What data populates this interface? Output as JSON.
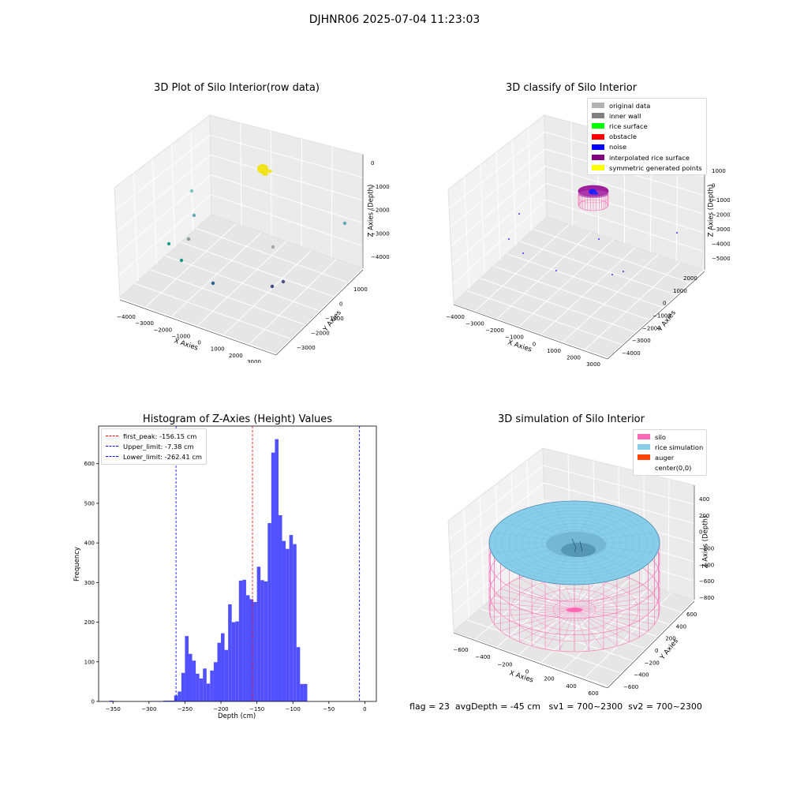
{
  "figure_title": "DJHNR06 2025-07-04 11:23:03",
  "status_text": "flag = 23  avgDepth = -45 cm   sv1 = 700~2300  sv2 = 700~2300",
  "colors": {
    "raw_points": [
      "#7fc5bf",
      "#6aa7b8",
      "#8a9a9f",
      "#1f9f8a",
      "#1a9a80",
      "#2d5f8a",
      "#3a4c8a",
      "#4b4f8e",
      "#a0a8a8",
      "#62a8b5"
    ],
    "yellow": "#f2e21a",
    "histogram": "#4c4cff",
    "peak_line": "#ff0000",
    "limit_line": "#0000ff",
    "silo": "#ff69b4",
    "rice": "#87ceeb",
    "auger": "#ff4500"
  },
  "chart_data": [
    {
      "type": "scatter",
      "dims": 3,
      "title": "3D Plot of Silo Interior(row data)",
      "xlabel": "X Axies",
      "ylabel": "Y Axies",
      "zlabel": "Z Axies (Depth)",
      "x_ticks": [
        "−4000",
        "−3000",
        "−2000",
        "−1000",
        "0",
        "1000",
        "2000",
        "3000"
      ],
      "y_ticks": [
        "1000",
        "0",
        "−1000",
        "−2000",
        "−3000"
      ],
      "z_ticks": [
        "0",
        "−1000",
        "−2000",
        "−3000",
        "−4000"
      ],
      "points_summary": "dense yellow cluster near top center (~x 0, z ~0) plus ~10 scattered points at depth"
    },
    {
      "type": "scatter",
      "dims": 3,
      "title": "3D classify of Silo Interior",
      "xlabel": "X Axies",
      "ylabel": "Y Axies",
      "zlabel": "Z Axies (Depth)",
      "x_ticks": [
        "−4000",
        "−3000",
        "−2000",
        "−1000",
        "0",
        "1000",
        "2000",
        "3000"
      ],
      "y_ticks": [
        "2000",
        "1000",
        "0",
        "−1000",
        "−2000",
        "−3000",
        "−4000"
      ],
      "z_ticks": [
        "1000",
        "0",
        "−1000",
        "−2000",
        "−3000",
        "−4000",
        "−5000"
      ],
      "legend": [
        {
          "label": "original data",
          "color": "#b3b3b3"
        },
        {
          "label": "inner wall",
          "color": "#808080"
        },
        {
          "label": "rice surface",
          "color": "#00ff00"
        },
        {
          "label": "obstacle",
          "color": "#ff0000"
        },
        {
          "label": "noise",
          "color": "#0000ff"
        },
        {
          "label": "interpolated rice surface",
          "color": "#800080"
        },
        {
          "label": "symmetric generated points",
          "color": "#ffff00"
        }
      ]
    },
    {
      "type": "bar",
      "subtype": "histogram",
      "title": "Histogram of Z-Axies (Height) Values",
      "xlabel": "Depth (cm)",
      "ylabel": "Frequency",
      "xlim": [
        -370,
        16
      ],
      "ylim": [
        0,
        695
      ],
      "x_ticks": [
        -350,
        -300,
        -250,
        -200,
        -150,
        -100,
        -50,
        0
      ],
      "y_ticks": [
        0,
        100,
        200,
        300,
        400,
        500,
        600
      ],
      "bin_width": 5,
      "bins": [
        [
          -355,
          2
        ],
        [
          -350,
          1
        ],
        [
          -345,
          0
        ],
        [
          -340,
          0
        ],
        [
          -335,
          0
        ],
        [
          -330,
          0
        ],
        [
          -325,
          0
        ],
        [
          -320,
          0
        ],
        [
          -315,
          0
        ],
        [
          -310,
          0
        ],
        [
          -305,
          0
        ],
        [
          -300,
          1
        ],
        [
          -295,
          1
        ],
        [
          -290,
          1
        ],
        [
          -285,
          1
        ],
        [
          -280,
          2
        ],
        [
          -275,
          2
        ],
        [
          -270,
          2
        ],
        [
          -265,
          15
        ],
        [
          -260,
          25
        ],
        [
          -255,
          72
        ],
        [
          -250,
          165
        ],
        [
          -245,
          120
        ],
        [
          -240,
          103
        ],
        [
          -235,
          70
        ],
        [
          -230,
          58
        ],
        [
          -225,
          83
        ],
        [
          -220,
          45
        ],
        [
          -215,
          78
        ],
        [
          -210,
          99
        ],
        [
          -205,
          148
        ],
        [
          -200,
          172
        ],
        [
          -195,
          130
        ],
        [
          -190,
          245
        ],
        [
          -185,
          200
        ],
        [
          -180,
          202
        ],
        [
          -175,
          305
        ],
        [
          -170,
          307
        ],
        [
          -165,
          268
        ],
        [
          -160,
          258
        ],
        [
          -155,
          251
        ],
        [
          -150,
          340
        ],
        [
          -145,
          306
        ],
        [
          -140,
          303
        ],
        [
          -135,
          450
        ],
        [
          -130,
          628
        ],
        [
          -125,
          662
        ],
        [
          -120,
          470
        ],
        [
          -115,
          405
        ],
        [
          -110,
          385
        ],
        [
          -105,
          420
        ],
        [
          -100,
          397
        ],
        [
          -95,
          137
        ],
        [
          -90,
          44
        ],
        [
          -85,
          44
        ]
      ],
      "vlines": [
        {
          "label": "first_peak: -156.15 cm",
          "x": -156.15,
          "color": "#ff0000"
        },
        {
          "label": "Upper_limit: -7.38 cm",
          "x": -7.38,
          "color": "#0000ff"
        },
        {
          "label": "Lower_limit: -262.41 cm",
          "x": -262.41,
          "color": "#0000ff"
        }
      ]
    },
    {
      "type": "area",
      "dims": 3,
      "title": "3D simulation of Silo Interior",
      "xlabel": "X Axies",
      "ylabel": "Y Axies",
      "zlabel": "Z Axies (Depth)",
      "x_ticks": [
        "−600",
        "−400",
        "−200",
        "0",
        "200",
        "400",
        "600"
      ],
      "y_ticks": [
        "600",
        "400",
        "200",
        "0",
        "−200",
        "−400",
        "−600"
      ],
      "z_ticks": [
        "400",
        "200",
        "0",
        "−200",
        "−400",
        "−600",
        "−800"
      ],
      "legend": [
        {
          "label": "silo",
          "color": "#ff69b4"
        },
        {
          "label": "rice simulation",
          "color": "#87ceeb"
        },
        {
          "label": "auger",
          "color": "#ff4500"
        },
        {
          "label": "center(0,0)",
          "color": "#ffffff"
        }
      ]
    }
  ]
}
